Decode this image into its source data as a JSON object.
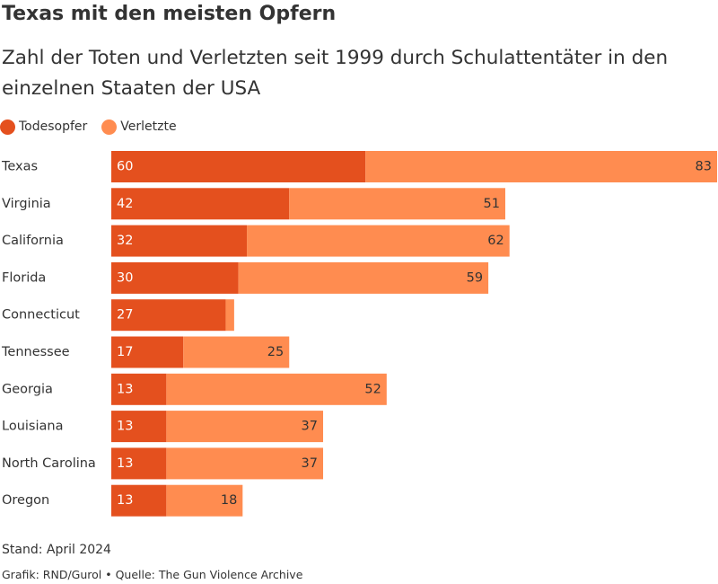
{
  "header": {
    "title": "Texas mit den meisten Opfern",
    "subtitle": "Zahl der Toten und Verletzten seit 1999 durch Schulattentäter in den einzelnen Staaten der USA"
  },
  "legend": {
    "items": [
      {
        "label": "Todesopfer",
        "color": "#E4501E"
      },
      {
        "label": "Verletzte",
        "color": "#FF8C50"
      }
    ]
  },
  "chart_data": {
    "type": "bar",
    "orientation": "horizontal",
    "stacked": true,
    "categories": [
      "Texas",
      "Virginia",
      "California",
      "Florida",
      "Connecticut",
      "Tennessee",
      "Georgia",
      "Louisiana",
      "North Carolina",
      "Oregon"
    ],
    "series": [
      {
        "name": "Todesopfer",
        "color": "#E4501E",
        "values": [
          60,
          42,
          32,
          30,
          27,
          17,
          13,
          13,
          13,
          13
        ]
      },
      {
        "name": "Verletzte",
        "color": "#FF8C50",
        "values": [
          83,
          51,
          62,
          59,
          2,
          25,
          52,
          37,
          37,
          18
        ]
      }
    ],
    "data_labels": {
      "Todesopfer": [
        "60",
        "42",
        "32",
        "30",
        "27",
        "17",
        "13",
        "13",
        "13",
        "13"
      ],
      "Verletzte": [
        "83",
        "51",
        "62",
        "59",
        "",
        "25",
        "52",
        "37",
        "37",
        "18"
      ]
    },
    "xlim": [
      0,
      143
    ],
    "grid": false,
    "legend_position": "top-left"
  },
  "footer": {
    "stand": "Stand: April 2024",
    "credit": "Grafik: RND/Gurol",
    "separator": "•",
    "source": "Quelle: The Gun Violence Archive"
  }
}
